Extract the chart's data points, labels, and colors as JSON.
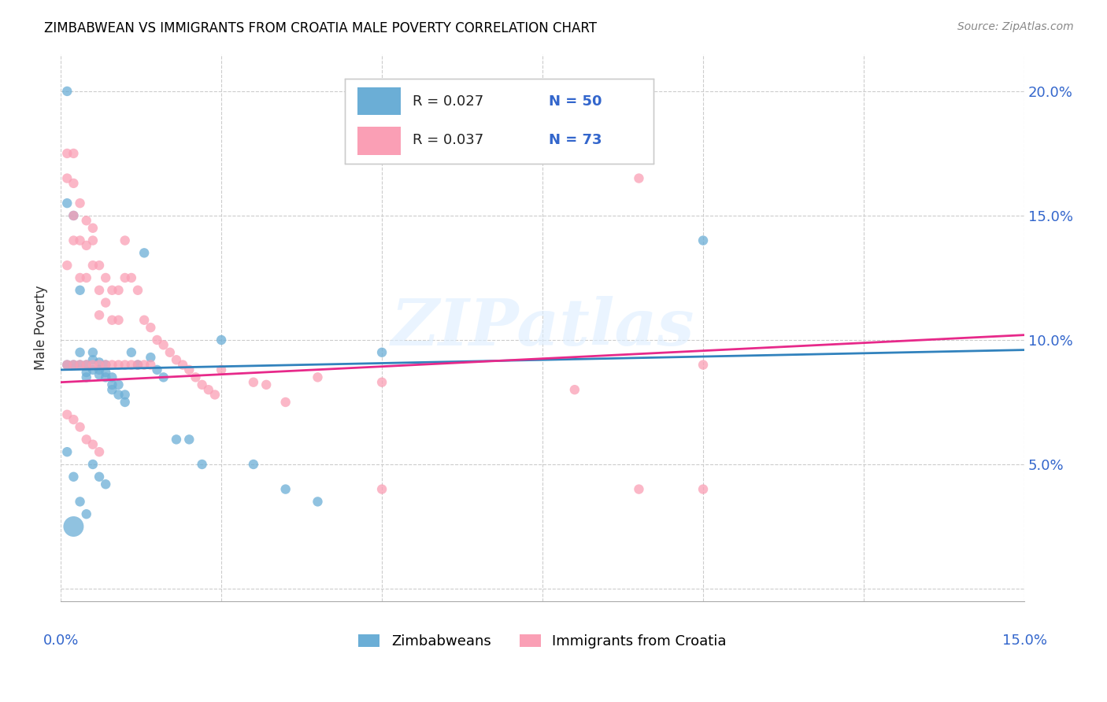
{
  "title": "ZIMBABWEAN VS IMMIGRANTS FROM CROATIA MALE POVERTY CORRELATION CHART",
  "source": "Source: ZipAtlas.com",
  "ylabel": "Male Poverty",
  "xlim": [
    0.0,
    0.15
  ],
  "ylim": [
    -0.005,
    0.215
  ],
  "yticks": [
    0.0,
    0.05,
    0.1,
    0.15,
    0.2
  ],
  "ytick_labels": [
    "",
    "5.0%",
    "10.0%",
    "15.0%",
    "20.0%"
  ],
  "xticks": [
    0.0,
    0.025,
    0.05,
    0.075,
    0.1,
    0.125,
    0.15
  ],
  "legend_blue_r": "R = 0.027",
  "legend_blue_n": "N = 50",
  "legend_pink_r": "R = 0.037",
  "legend_pink_n": "N = 73",
  "blue_color": "#6baed6",
  "pink_color": "#fa9fb5",
  "blue_line_color": "#3182bd",
  "pink_line_color": "#e7298a",
  "label_blue": "Zimbabweans",
  "label_pink": "Immigrants from Croatia",
  "watermark": "ZIPatlas",
  "blue_scatter_x": [
    0.001,
    0.001,
    0.001,
    0.002,
    0.002,
    0.003,
    0.003,
    0.003,
    0.004,
    0.004,
    0.004,
    0.005,
    0.005,
    0.005,
    0.006,
    0.006,
    0.006,
    0.007,
    0.007,
    0.007,
    0.008,
    0.008,
    0.008,
    0.009,
    0.009,
    0.01,
    0.01,
    0.011,
    0.012,
    0.013,
    0.014,
    0.015,
    0.016,
    0.018,
    0.02,
    0.022,
    0.025,
    0.03,
    0.035,
    0.04,
    0.05,
    0.001,
    0.002,
    0.003,
    0.004,
    0.005,
    0.006,
    0.007,
    0.1,
    0.002
  ],
  "blue_scatter_y": [
    0.2,
    0.155,
    0.09,
    0.15,
    0.09,
    0.12,
    0.095,
    0.09,
    0.09,
    0.087,
    0.085,
    0.095,
    0.092,
    0.088,
    0.091,
    0.088,
    0.086,
    0.09,
    0.087,
    0.085,
    0.085,
    0.082,
    0.08,
    0.082,
    0.078,
    0.078,
    0.075,
    0.095,
    0.09,
    0.135,
    0.093,
    0.088,
    0.085,
    0.06,
    0.06,
    0.05,
    0.1,
    0.05,
    0.04,
    0.035,
    0.095,
    0.055,
    0.045,
    0.035,
    0.03,
    0.05,
    0.045,
    0.042,
    0.14,
    0.025
  ],
  "blue_scatter_s": [
    80,
    80,
    80,
    80,
    80,
    80,
    80,
    80,
    80,
    80,
    80,
    80,
    80,
    80,
    80,
    80,
    80,
    80,
    80,
    80,
    80,
    80,
    80,
    80,
    80,
    80,
    80,
    80,
    80,
    80,
    80,
    80,
    80,
    80,
    80,
    80,
    80,
    80,
    80,
    80,
    80,
    80,
    80,
    80,
    80,
    80,
    80,
    80,
    80,
    350
  ],
  "pink_scatter_x": [
    0.001,
    0.001,
    0.001,
    0.001,
    0.002,
    0.002,
    0.002,
    0.002,
    0.002,
    0.003,
    0.003,
    0.003,
    0.003,
    0.004,
    0.004,
    0.004,
    0.004,
    0.005,
    0.005,
    0.005,
    0.005,
    0.006,
    0.006,
    0.006,
    0.006,
    0.007,
    0.007,
    0.007,
    0.008,
    0.008,
    0.008,
    0.009,
    0.009,
    0.009,
    0.01,
    0.01,
    0.01,
    0.011,
    0.011,
    0.012,
    0.012,
    0.013,
    0.013,
    0.014,
    0.014,
    0.015,
    0.016,
    0.017,
    0.018,
    0.019,
    0.02,
    0.021,
    0.022,
    0.023,
    0.024,
    0.025,
    0.03,
    0.032,
    0.035,
    0.04,
    0.05,
    0.08,
    0.09,
    0.1,
    0.001,
    0.002,
    0.003,
    0.004,
    0.005,
    0.006,
    0.05,
    0.1,
    0.09
  ],
  "pink_scatter_y": [
    0.175,
    0.165,
    0.13,
    0.09,
    0.175,
    0.163,
    0.15,
    0.14,
    0.09,
    0.155,
    0.14,
    0.125,
    0.09,
    0.148,
    0.138,
    0.125,
    0.09,
    0.145,
    0.14,
    0.13,
    0.09,
    0.13,
    0.12,
    0.11,
    0.09,
    0.125,
    0.115,
    0.09,
    0.12,
    0.108,
    0.09,
    0.12,
    0.108,
    0.09,
    0.14,
    0.125,
    0.09,
    0.125,
    0.09,
    0.12,
    0.09,
    0.108,
    0.09,
    0.105,
    0.09,
    0.1,
    0.098,
    0.095,
    0.092,
    0.09,
    0.088,
    0.085,
    0.082,
    0.08,
    0.078,
    0.088,
    0.083,
    0.082,
    0.075,
    0.085,
    0.083,
    0.08,
    0.165,
    0.09,
    0.07,
    0.068,
    0.065,
    0.06,
    0.058,
    0.055,
    0.04,
    0.04,
    0.04
  ],
  "pink_scatter_s": [
    80,
    80,
    80,
    80,
    80,
    80,
    80,
    80,
    80,
    80,
    80,
    80,
    80,
    80,
    80,
    80,
    80,
    80,
    80,
    80,
    80,
    80,
    80,
    80,
    80,
    80,
    80,
    80,
    80,
    80,
    80,
    80,
    80,
    80,
    80,
    80,
    80,
    80,
    80,
    80,
    80,
    80,
    80,
    80,
    80,
    80,
    80,
    80,
    80,
    80,
    80,
    80,
    80,
    80,
    80,
    80,
    80,
    80,
    80,
    80,
    80,
    80,
    80,
    80,
    80,
    80,
    80,
    80,
    80,
    80,
    80,
    80,
    80
  ],
  "blue_line": {
    "x0": 0.0,
    "x1": 0.15,
    "y0": 0.088,
    "y1": 0.096
  },
  "pink_line": {
    "x0": 0.0,
    "x1": 0.15,
    "y0": 0.083,
    "y1": 0.102
  }
}
